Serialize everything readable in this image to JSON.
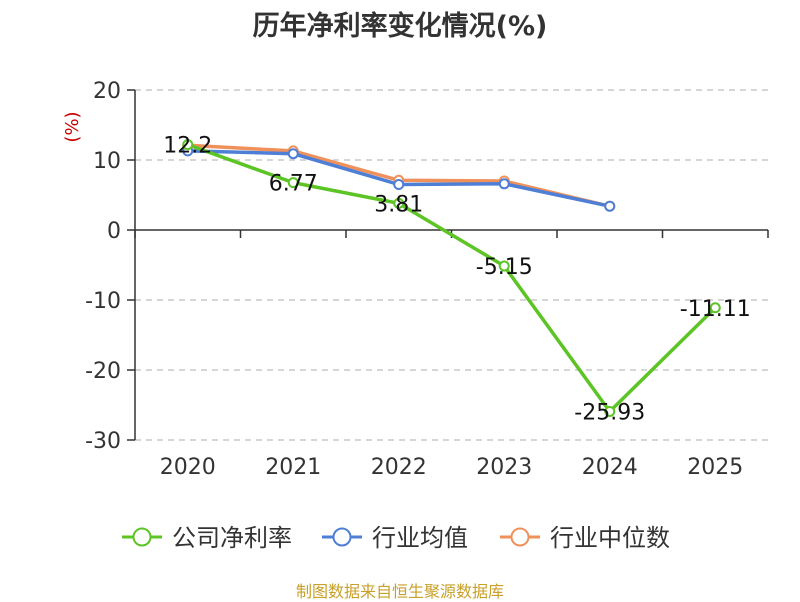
{
  "chart_data": {
    "type": "line",
    "title": "历年净利率变化情况(%)",
    "ylabel": "(%)",
    "xlabel": "",
    "categories": [
      "2020",
      "2021",
      "2022",
      "2023",
      "2024",
      "2025"
    ],
    "ylim": [
      -30,
      20
    ],
    "yticks": [
      20,
      10,
      0,
      -10,
      -20,
      -30
    ],
    "grid": true,
    "legend_position": "bottom",
    "series": [
      {
        "name": "公司净利率",
        "color": "#5cc424",
        "values": [
          12.2,
          6.77,
          3.81,
          -5.15,
          -25.93,
          -11.11
        ],
        "labels": [
          "12.2",
          "6.77",
          "3.81",
          "-5.15",
          "-25.93",
          "-11.11"
        ]
      },
      {
        "name": "行业均值",
        "color": "#4e7fd6",
        "values": [
          11.3,
          10.9,
          6.5,
          6.6,
          3.4,
          null
        ]
      },
      {
        "name": "行业中位数",
        "color": "#f0915c",
        "values": [
          12.1,
          11.3,
          7.1,
          7.0,
          3.4,
          null
        ]
      }
    ]
  },
  "footer": {
    "source": "制图数据来自恒生聚源数据库"
  }
}
